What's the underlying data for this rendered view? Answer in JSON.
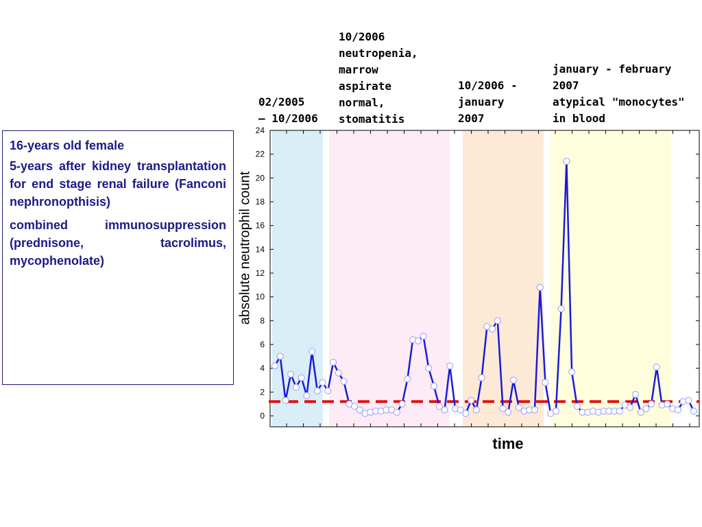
{
  "case": {
    "lines": [
      "16-years old female",
      "5-years after kidney transplantation for end stage renal failure (Fanconi nephronopthisis)",
      "combined immunosuppression (prednisone, tacrolimus, mycophenolate)"
    ]
  },
  "phases": [
    {
      "label": "02/2005\n– 10/2006",
      "color": "#d9eef7"
    },
    {
      "label": "10/2006\nneutropenia,\nmarrow\naspirate\nnormal,\nstomatitis",
      "color": "#fdebf5"
    },
    {
      "label": "10/2006 -\njanuary\n2007",
      "color": "#fcead7"
    },
    {
      "label": "january - february\n2007\natypical \"monocytes\"\nin blood",
      "color": "#fefedd"
    }
  ],
  "colors": {
    "line": "#1a1ad6",
    "marker_edge": "#9a9aff",
    "threshold": "#e01010",
    "text": "#1b1b85"
  },
  "chart_data": {
    "type": "line",
    "xlabel": "time",
    "ylabel": "absolute neutrophil count",
    "ylim": [
      -1,
      24
    ],
    "yticks": [
      0,
      2,
      4,
      6,
      8,
      10,
      12,
      14,
      16,
      18,
      20,
      22,
      24
    ],
    "threshold": 1.2,
    "grid": false,
    "series": [
      {
        "values": [
          4.2,
          5.0,
          1.3,
          3.5,
          2.4,
          3.2,
          1.7,
          5.4,
          2.1,
          2.8,
          2.1,
          4.5,
          3.6,
          2.9,
          1.0,
          0.8,
          0.5,
          0.2,
          0.3,
          0.4,
          0.4,
          0.5,
          0.5,
          0.3,
          1.0,
          3.1,
          6.4,
          6.3,
          6.7,
          4.0,
          2.5,
          0.8,
          0.5,
          4.2,
          0.6,
          0.5,
          0.2,
          1.3,
          0.5,
          3.2,
          7.5,
          7.3,
          8.0,
          0.6,
          0.3,
          3.0,
          0.7,
          0.4,
          0.5,
          0.5,
          10.8,
          2.8,
          0.2,
          0.4,
          9.0,
          21.4,
          3.7,
          0.8,
          0.3,
          0.3,
          0.4,
          0.3,
          0.4,
          0.4,
          0.4,
          0.4,
          0.9,
          0.7,
          1.8,
          0.3,
          0.6,
          1.0,
          4.1,
          0.9,
          1.0,
          0.6,
          0.5,
          1.2,
          1.3,
          0.4
        ]
      }
    ]
  }
}
